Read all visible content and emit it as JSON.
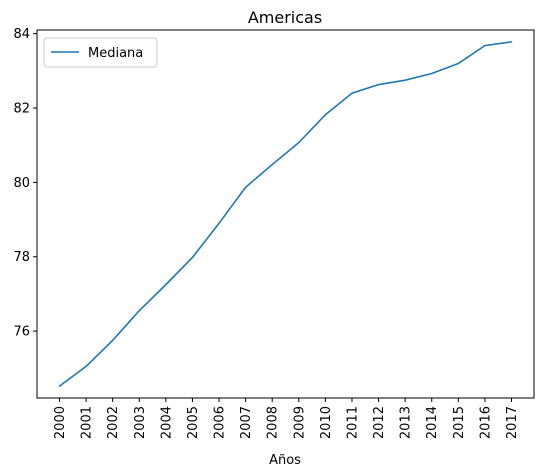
{
  "chart_data": {
    "type": "line",
    "title": "Americas",
    "xlabel": "Años",
    "ylabel": "",
    "x": [
      "2000",
      "2001",
      "2002",
      "2003",
      "2004",
      "2005",
      "2006",
      "2007",
      "2008",
      "2009",
      "2010",
      "2011",
      "2012",
      "2013",
      "2014",
      "2015",
      "2016",
      "2017"
    ],
    "series": [
      {
        "name": "Mediana",
        "color": "#1f77b4",
        "values": [
          74.52,
          75.05,
          75.75,
          76.55,
          77.25,
          77.98,
          78.9,
          79.87,
          80.48,
          81.07,
          81.82,
          82.4,
          82.63,
          82.75,
          82.93,
          83.2,
          83.68,
          83.78
        ]
      }
    ],
    "ylim": [
      74.2,
      84.1
    ],
    "yticks": [
      76,
      78,
      80,
      82,
      84
    ],
    "grid": false,
    "legend_position": "upper-left"
  }
}
